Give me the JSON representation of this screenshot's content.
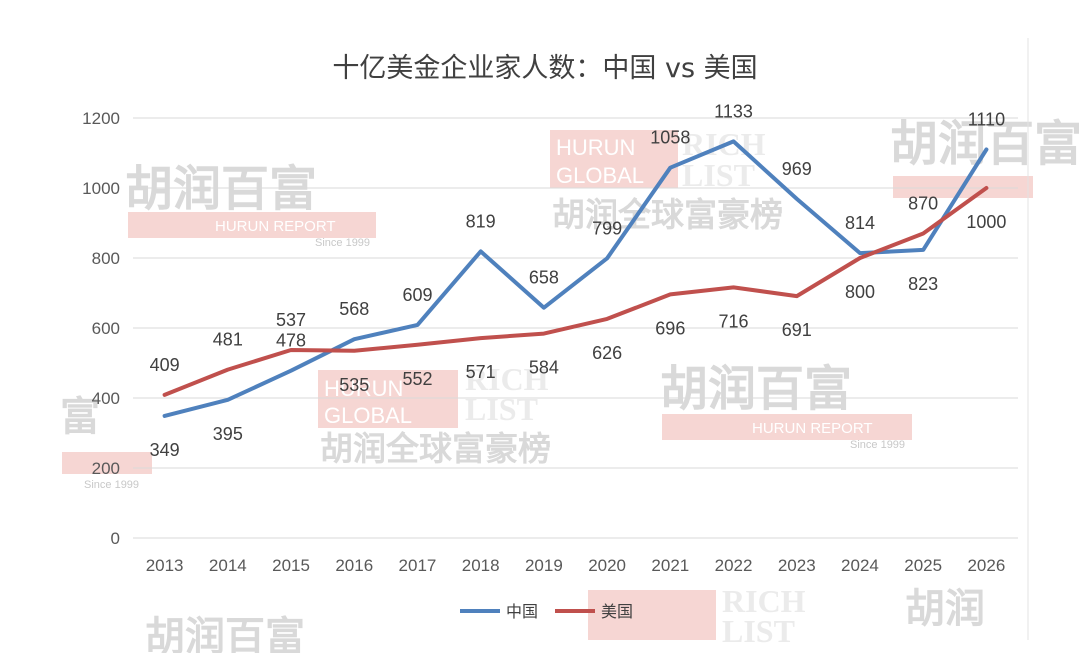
{
  "chart_data": {
    "type": "line",
    "title": "十亿美金企业家人数：中国 vs 美国",
    "categories": [
      "2013",
      "2014",
      "2015",
      "2016",
      "2017",
      "2018",
      "2019",
      "2020",
      "2021",
      "2022",
      "2023",
      "2024",
      "2025",
      "2026"
    ],
    "series": [
      {
        "name": "中国",
        "color": "#4f81bd",
        "values": [
          349,
          395,
          478,
          568,
          609,
          819,
          658,
          799,
          1058,
          1133,
          969,
          814,
          823,
          1110
        ]
      },
      {
        "name": "美国",
        "color": "#c0504d",
        "values": [
          409,
          481,
          537,
          535,
          552,
          571,
          584,
          626,
          696,
          716,
          691,
          800,
          870,
          1000
        ]
      }
    ],
    "ylim": [
      0,
      1200
    ],
    "yticks": [
      0,
      200,
      400,
      600,
      800,
      1000,
      1200
    ],
    "grid": true,
    "legend_position": "bottom"
  },
  "watermark": {
    "brand_cn": "胡润百富",
    "brand_en": "HURUN REPORT",
    "since": "Since 1999",
    "list_en_1": "HURUN",
    "list_en_2": "GLOBAL",
    "list_en_3": "RICH",
    "list_en_4": "LIST",
    "list_cn": "胡润全球富豪榜"
  }
}
